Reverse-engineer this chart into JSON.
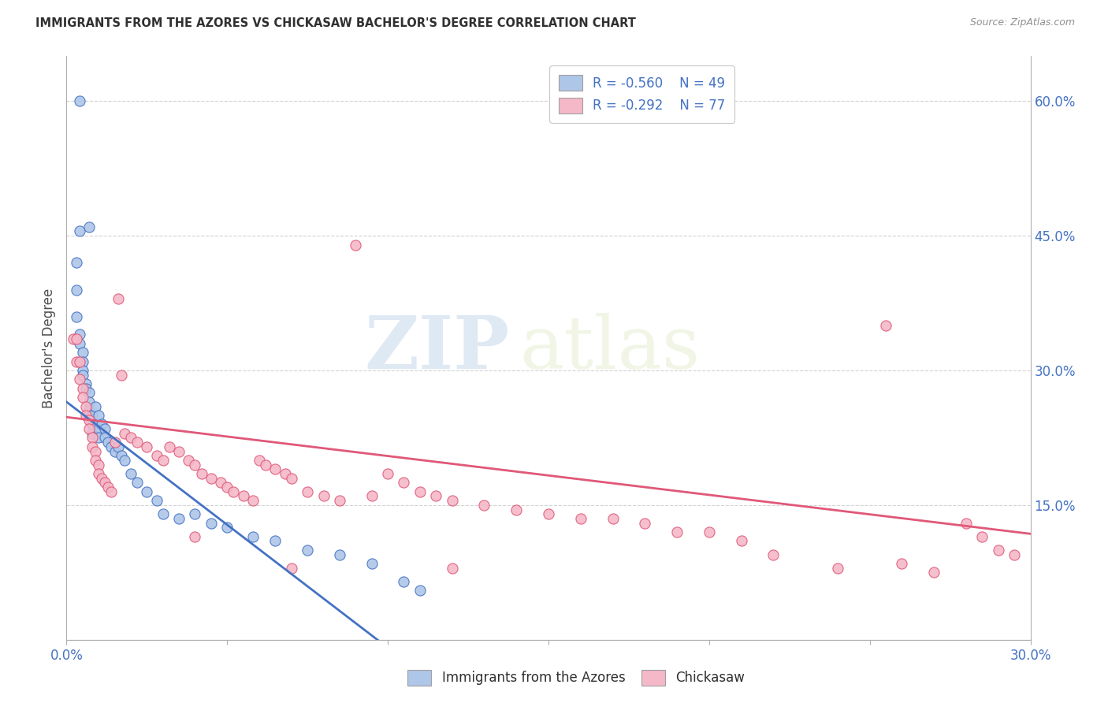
{
  "title": "IMMIGRANTS FROM THE AZORES VS CHICKASAW BACHELOR'S DEGREE CORRELATION CHART",
  "source": "Source: ZipAtlas.com",
  "ylabel": "Bachelor's Degree",
  "xlim": [
    0.0,
    0.3
  ],
  "ylim": [
    0.0,
    0.65
  ],
  "right_yticks": [
    0.15,
    0.3,
    0.45,
    0.6
  ],
  "right_yticklabels": [
    "15.0%",
    "30.0%",
    "45.0%",
    "60.0%"
  ],
  "xtick_labels": [
    "0.0%",
    "",
    "",
    "",
    "",
    "",
    "30.0%"
  ],
  "legend_r1": "R = -0.560",
  "legend_n1": "N = 49",
  "legend_r2": "R = -0.292",
  "legend_n2": "N = 77",
  "color_blue": "#aec6e8",
  "color_pink": "#f4b8c8",
  "line_blue": "#4472c4",
  "line_pink": "#e05878",
  "watermark": "ZIPatlas",
  "blue_line_x": [
    0.0,
    0.115
  ],
  "blue_line_y": [
    0.265,
    -0.05
  ],
  "pink_line_x": [
    0.0,
    0.3
  ],
  "pink_line_y": [
    0.248,
    0.118
  ],
  "blue_x": [
    0.004,
    0.004,
    0.007,
    0.003,
    0.003,
    0.003,
    0.004,
    0.004,
    0.005,
    0.005,
    0.005,
    0.005,
    0.006,
    0.006,
    0.007,
    0.007,
    0.007,
    0.008,
    0.008,
    0.008,
    0.009,
    0.01,
    0.01,
    0.01,
    0.011,
    0.012,
    0.012,
    0.013,
    0.014,
    0.015,
    0.016,
    0.017,
    0.018,
    0.02,
    0.022,
    0.025,
    0.028,
    0.03,
    0.035,
    0.04,
    0.045,
    0.05,
    0.058,
    0.065,
    0.075,
    0.085,
    0.095,
    0.105,
    0.11
  ],
  "blue_y": [
    0.6,
    0.455,
    0.46,
    0.42,
    0.39,
    0.36,
    0.34,
    0.33,
    0.32,
    0.31,
    0.3,
    0.295,
    0.285,
    0.28,
    0.275,
    0.265,
    0.255,
    0.25,
    0.24,
    0.23,
    0.26,
    0.25,
    0.235,
    0.225,
    0.24,
    0.235,
    0.225,
    0.22,
    0.215,
    0.21,
    0.215,
    0.205,
    0.2,
    0.185,
    0.175,
    0.165,
    0.155,
    0.14,
    0.135,
    0.14,
    0.13,
    0.125,
    0.115,
    0.11,
    0.1,
    0.095,
    0.085,
    0.065,
    0.055
  ],
  "pink_x": [
    0.002,
    0.003,
    0.003,
    0.004,
    0.004,
    0.005,
    0.005,
    0.006,
    0.006,
    0.007,
    0.007,
    0.008,
    0.008,
    0.009,
    0.009,
    0.01,
    0.01,
    0.011,
    0.012,
    0.013,
    0.014,
    0.015,
    0.016,
    0.017,
    0.018,
    0.02,
    0.022,
    0.025,
    0.028,
    0.03,
    0.032,
    0.035,
    0.038,
    0.04,
    0.042,
    0.045,
    0.048,
    0.05,
    0.052,
    0.055,
    0.058,
    0.06,
    0.062,
    0.065,
    0.068,
    0.07,
    0.075,
    0.08,
    0.085,
    0.09,
    0.095,
    0.1,
    0.105,
    0.11,
    0.115,
    0.12,
    0.13,
    0.14,
    0.15,
    0.16,
    0.17,
    0.18,
    0.19,
    0.2,
    0.21,
    0.22,
    0.24,
    0.255,
    0.26,
    0.27,
    0.28,
    0.285,
    0.29,
    0.295,
    0.12,
    0.07,
    0.04
  ],
  "pink_y": [
    0.335,
    0.335,
    0.31,
    0.31,
    0.29,
    0.28,
    0.27,
    0.26,
    0.25,
    0.245,
    0.235,
    0.225,
    0.215,
    0.21,
    0.2,
    0.195,
    0.185,
    0.18,
    0.175,
    0.17,
    0.165,
    0.22,
    0.38,
    0.295,
    0.23,
    0.225,
    0.22,
    0.215,
    0.205,
    0.2,
    0.215,
    0.21,
    0.2,
    0.195,
    0.185,
    0.18,
    0.175,
    0.17,
    0.165,
    0.16,
    0.155,
    0.2,
    0.195,
    0.19,
    0.185,
    0.18,
    0.165,
    0.16,
    0.155,
    0.44,
    0.16,
    0.185,
    0.175,
    0.165,
    0.16,
    0.155,
    0.15,
    0.145,
    0.14,
    0.135,
    0.135,
    0.13,
    0.12,
    0.12,
    0.11,
    0.095,
    0.08,
    0.35,
    0.085,
    0.075,
    0.13,
    0.115,
    0.1,
    0.095,
    0.08,
    0.08,
    0.115
  ]
}
